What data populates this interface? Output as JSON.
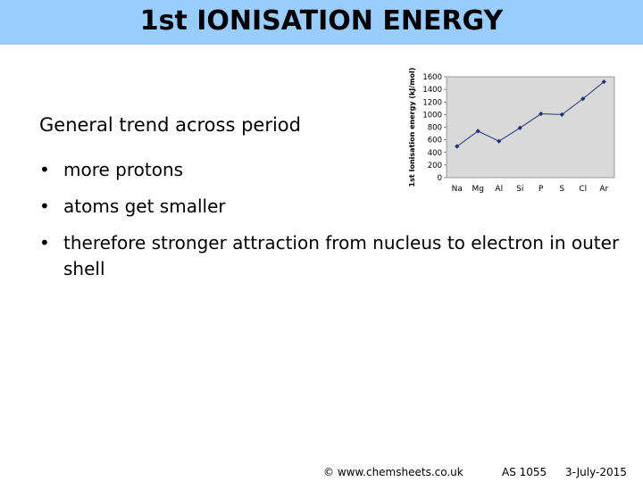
{
  "slide": {
    "title": "1st IONISATION ENERGY",
    "subtitle": "General trend across period",
    "bullet_symbol": "•",
    "bullets": [
      "more protons",
      "atoms get smaller",
      "therefore stronger attraction from nucleus to electron in outer shell"
    ]
  },
  "footer": {
    "copyright": "© www.chemsheets.co.uk",
    "code": "AS 1055",
    "date": "3-July-2015"
  },
  "colors": {
    "title_bar": "#99ccff",
    "plot_background": "#d9d9d9",
    "series": "#1f2f7a"
  },
  "chart_data": {
    "type": "line",
    "title": "",
    "xlabel": "",
    "ylabel": "1st Ionisation energy (kJ/mol)",
    "categories": [
      "Na",
      "Mg",
      "Al",
      "Si",
      "P",
      "S",
      "Cl",
      "Ar"
    ],
    "values": [
      496,
      738,
      578,
      789,
      1012,
      1000,
      1251,
      1521
    ],
    "ylim": [
      0,
      1600
    ],
    "yticks": [
      "0",
      "200",
      "400",
      "600",
      "800",
      "1000",
      "1200",
      "1400",
      "1600"
    ],
    "grid": false,
    "legend": "none"
  }
}
